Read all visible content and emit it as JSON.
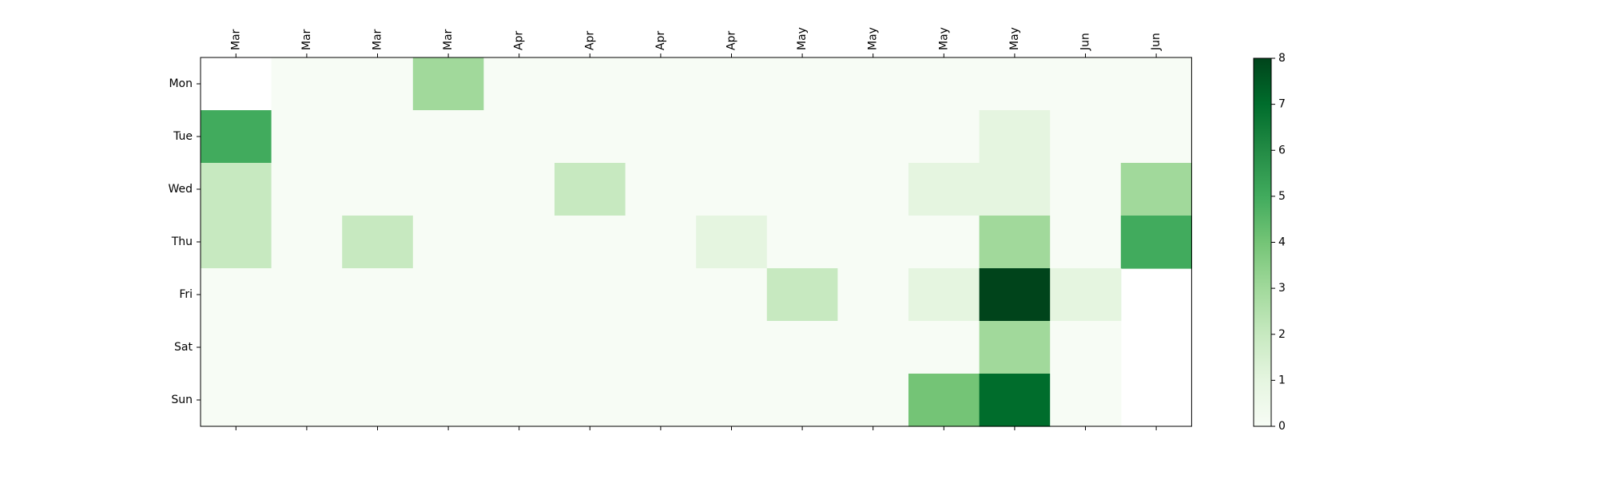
{
  "chart_data": {
    "type": "heatmap",
    "title": "",
    "xlabel": "",
    "ylabel": "",
    "rows": [
      "Mon",
      "Tue",
      "Wed",
      "Thu",
      "Fri",
      "Sat",
      "Sun"
    ],
    "columns": [
      "Mar",
      "Mar",
      "Mar",
      "Mar",
      "Apr",
      "Apr",
      "Apr",
      "Apr",
      "May",
      "May",
      "May",
      "May",
      "Jun",
      "Jun"
    ],
    "x_axis_position": "top",
    "values": [
      [
        null,
        0,
        0,
        3,
        0,
        0,
        0,
        0,
        0,
        0,
        0,
        0,
        0,
        0
      ],
      [
        5,
        0,
        0,
        0,
        0,
        0,
        0,
        0,
        0,
        0,
        0,
        1,
        0,
        0
      ],
      [
        2,
        0,
        0,
        0,
        0,
        2,
        0,
        0,
        0,
        0,
        1,
        1,
        0,
        3
      ],
      [
        2,
        0,
        2,
        0,
        0,
        0,
        0,
        1,
        0,
        0,
        0,
        3,
        0,
        5
      ],
      [
        0,
        0,
        0,
        0,
        0,
        0,
        0,
        0,
        2,
        0,
        1,
        8,
        1,
        null
      ],
      [
        0,
        0,
        0,
        0,
        0,
        0,
        0,
        0,
        0,
        0,
        0,
        3,
        0,
        null
      ],
      [
        0,
        0,
        0,
        0,
        0,
        0,
        0,
        0,
        0,
        0,
        4,
        7,
        0,
        null
      ]
    ],
    "colormap": "Greens",
    "colorbar": {
      "min": 0,
      "max": 8,
      "ticks": [
        "0",
        "1",
        "2",
        "3",
        "4",
        "5",
        "6",
        "7",
        "8"
      ]
    }
  }
}
